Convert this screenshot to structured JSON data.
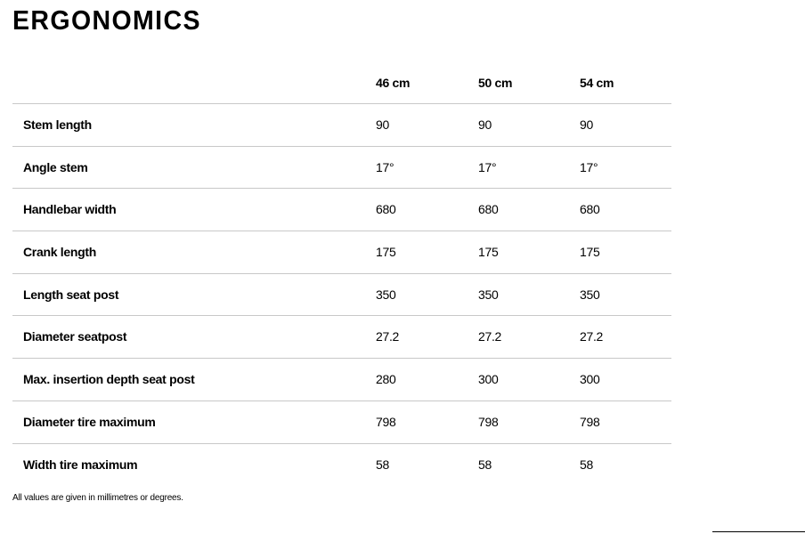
{
  "title": "ERGONOMICS",
  "columns": [
    "46 cm",
    "50 cm",
    "54 cm"
  ],
  "rows": [
    {
      "label": "Stem length",
      "values": [
        "90",
        "90",
        "90"
      ]
    },
    {
      "label": "Angle stem",
      "values": [
        "17°",
        "17°",
        "17°"
      ]
    },
    {
      "label": "Handlebar width",
      "values": [
        "680",
        "680",
        "680"
      ]
    },
    {
      "label": "Crank length",
      "values": [
        "175",
        "175",
        "175"
      ]
    },
    {
      "label": "Length seat post",
      "values": [
        "350",
        "350",
        "350"
      ]
    },
    {
      "label": "Diameter seatpost",
      "values": [
        "27.2",
        "27.2",
        "27.2"
      ]
    },
    {
      "label": "Max. insertion depth seat post",
      "values": [
        "280",
        "300",
        "300"
      ]
    },
    {
      "label": "Diameter tire maximum",
      "values": [
        "798",
        "798",
        "798"
      ]
    },
    {
      "label": "Width tire maximum",
      "values": [
        "58",
        "58",
        "58"
      ]
    }
  ],
  "footnote": "All values are given in millimetres or degrees."
}
